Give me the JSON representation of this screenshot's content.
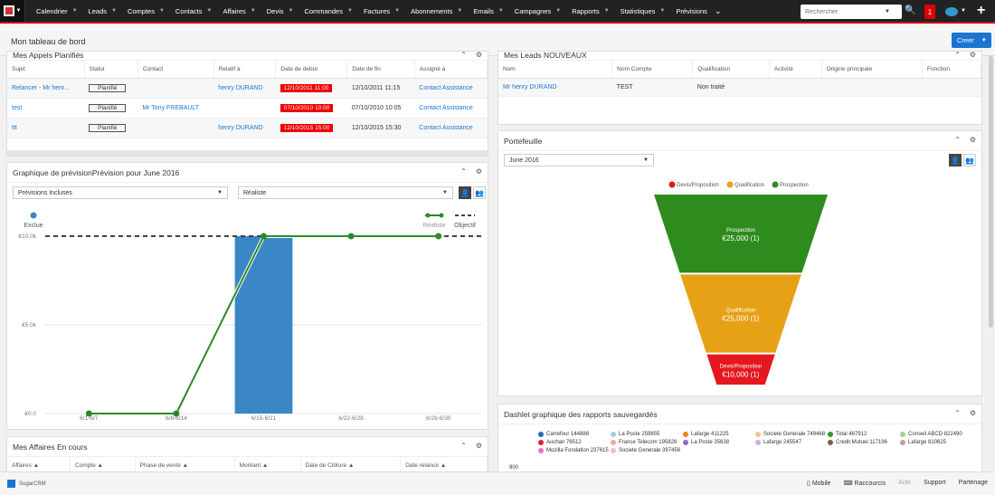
{
  "nav": {
    "items": [
      "Calendrier",
      "Leads",
      "Comptes",
      "Contacts",
      "Affaires",
      "Devis",
      "Commandes",
      "Factures",
      "Abonnements",
      "Emails",
      "Campagnes",
      "Rapports",
      "Statistiques",
      "Prévisions"
    ],
    "search_placeholder": "Rechercher",
    "notification_count": "1"
  },
  "page": {
    "title": "Mon tableau de bord",
    "create_label": "Creer"
  },
  "calls": {
    "title": "Mes Appels Planifiés",
    "columns": [
      "Sujet",
      "Statut",
      "Contact",
      "Relatif à",
      "Date de debut",
      "Date de fin",
      "Assigné à"
    ],
    "rows": [
      {
        "subject": "Relancer - Mr henr...",
        "status": "Planifié",
        "contact": "",
        "related": "henry DURAND",
        "start": "12/10/2011 11:00",
        "end": "12/10/2011 11:15",
        "assigned": "Contact Assistance"
      },
      {
        "subject": "test",
        "status": "Planifié",
        "contact": "Mr Tony FREBAULT",
        "related": "",
        "start": "07/10/2010 10:00",
        "end": "07/10/2010 10:05",
        "assigned": "Contact Assistance"
      },
      {
        "subject": "ttt",
        "status": "Planifié",
        "contact": "",
        "related": "henry DURAND",
        "start": "12/10/2015 15:00",
        "end": "12/10/2015 15:30",
        "assigned": "Contact Assistance"
      }
    ]
  },
  "leads": {
    "title": "Mes Leads NOUVEAUX",
    "columns": [
      "Nom",
      "Nom Compte",
      "Qualification",
      "Activité",
      "Origine principale",
      "Fonction"
    ],
    "rows": [
      {
        "name": "Mr henry DURAND",
        "account": "TEST",
        "qualification": "Non traité",
        "activity": "",
        "origin": "",
        "function": ""
      }
    ]
  },
  "forecast": {
    "title": "Graphique de prévisionPrévision pour June 2016",
    "select1": "Prévisions Incluses",
    "select2": "Réaliste",
    "legend_excluded": "Exclue",
    "legend_realistic": "Réaliste",
    "legend_objective": "Objectif"
  },
  "portfolio": {
    "title": "Portefeuille",
    "period": "June 2016"
  },
  "affaires": {
    "title": "Mes Affaires En cours",
    "columns": [
      "Affaires",
      "Compte",
      "Phase de vente",
      "Montant",
      "Date de Clôture",
      "Date relance"
    ]
  },
  "reports": {
    "title": "Dashlet graphique des rapports sauvegardés",
    "legend": [
      {
        "label": "Carrefour 144888",
        "color": "#1f6fb2"
      },
      {
        "label": "La Poste 259855",
        "color": "#a9c6e8"
      },
      {
        "label": "Lafarge 411225",
        "color": "#f0831e"
      },
      {
        "label": "Societe Generale 749468",
        "color": "#f5c48a"
      },
      {
        "label": "Total 487912",
        "color": "#2a9a2a"
      },
      {
        "label": "Conseil ABCD 822490",
        "color": "#98d98a"
      },
      {
        "label": "Auchan 76512",
        "color": "#d62728"
      },
      {
        "label": "France Telecom 195829",
        "color": "#f4a6a6"
      },
      {
        "label": "La Poste 35638",
        "color": "#9467bd"
      },
      {
        "label": "Lafarge 245547",
        "color": "#c9b3dd"
      },
      {
        "label": "Credit Mutuel 117196",
        "color": "#8c564b"
      },
      {
        "label": "Lafarge 810625",
        "color": "#c49c94"
      },
      {
        "label": "Mozilla Fondation 237615",
        "color": "#e377c2"
      },
      {
        "label": "Societe Generale 397456",
        "color": "#f7b6d2"
      }
    ],
    "y_tick": "900"
  },
  "footer": {
    "logo_text": "SugarCRM",
    "links": [
      "Mobile",
      "Raccourcis",
      "Aide",
      "Support",
      "Partenage"
    ]
  },
  "chart_data": [
    {
      "type": "bar",
      "categories": [
        "6/1-6/7",
        "6/8-6/14",
        "6/15-6/21",
        "6/22-6/28",
        "6/29-6/30"
      ],
      "series": [
        {
          "name": "Exclue",
          "values": [
            0,
            0,
            10000,
            0,
            0
          ]
        },
        {
          "name": "Réaliste",
          "values": [
            0,
            0,
            10000,
            10000,
            10000
          ]
        },
        {
          "name": "Objectif",
          "values": [
            10000,
            10000,
            10000,
            10000,
            10000
          ]
        }
      ],
      "ylim": [
        0,
        10000
      ],
      "yticks": [
        "€0.0",
        "€5.0k",
        "€10.0k"
      ],
      "legend": "top-right"
    },
    {
      "type": "funnel",
      "categories": [
        "Prospection",
        "Qualification",
        "Devis/Proposition"
      ],
      "values": [
        25000,
        25000,
        10000
      ],
      "labels": [
        "€25,000 (1)",
        "€25,000 (1)",
        "€10,000 (1)"
      ],
      "colors": [
        "#2e8b1e",
        "#e6a117",
        "#e5181f"
      ],
      "legend": "top"
    }
  ]
}
